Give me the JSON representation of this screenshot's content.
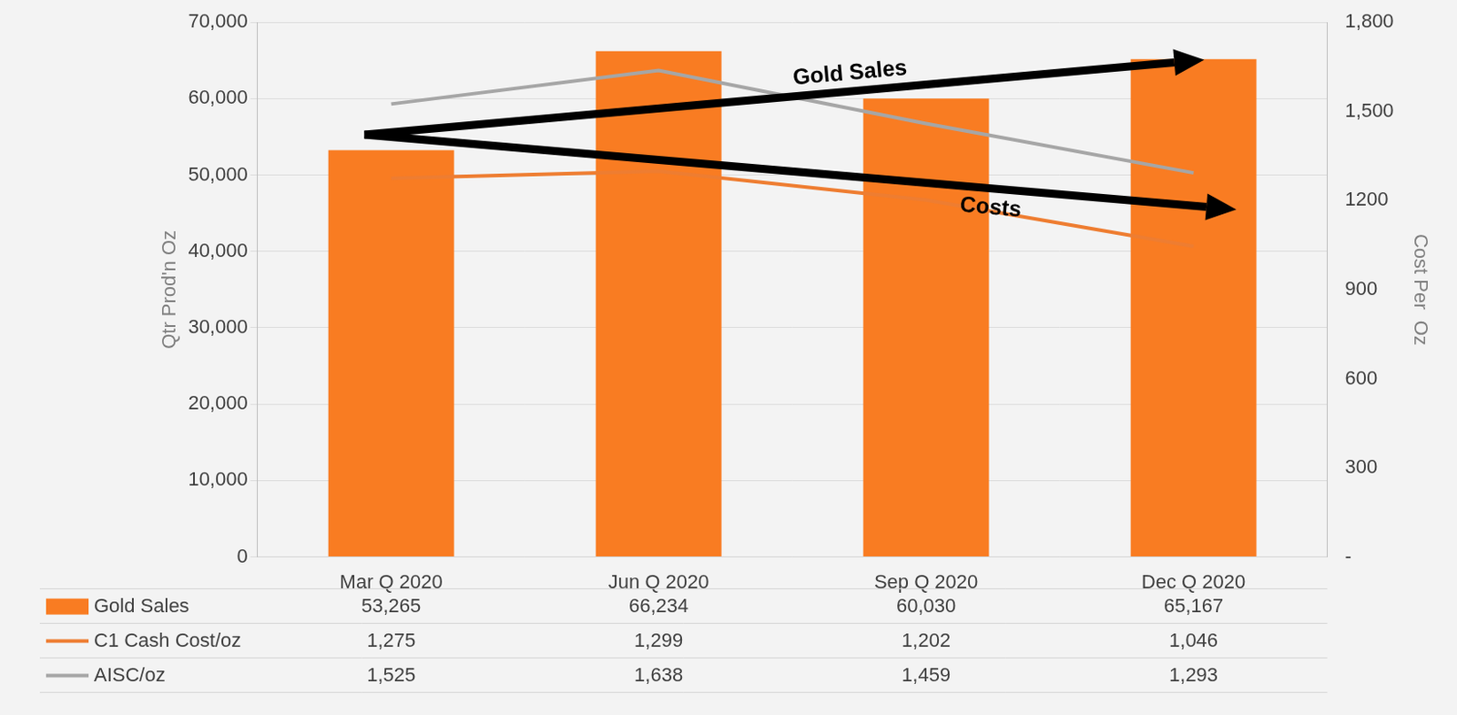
{
  "chart_data": {
    "type": "bar",
    "categories": [
      "Mar Q 2020",
      "Jun Q 2020",
      "Sep Q 2020",
      "Dec Q 2020"
    ],
    "series": [
      {
        "name": "Gold Sales",
        "type": "bar",
        "color": "#f97c22",
        "values": [
          53265,
          66234,
          60030,
          65167
        ],
        "value_labels": [
          "53,265",
          "66,234",
          "60,030",
          "65,167"
        ]
      },
      {
        "name": "C1 Cash Cost/oz",
        "type": "line",
        "color": "#ee7d31",
        "axis": "y2",
        "values": [
          1275,
          1299,
          1202,
          1046
        ],
        "value_labels": [
          "1,275",
          "1,299",
          "1,202",
          "1,046"
        ]
      },
      {
        "name": "AISC/oz",
        "type": "line",
        "color": "#a6a6a6",
        "axis": "y2",
        "values": [
          1525,
          1638,
          1459,
          1293
        ],
        "value_labels": [
          "1,525",
          "1,638",
          "1,459",
          "1,293"
        ]
      }
    ],
    "y_label": "Qtr Prod'n Oz",
    "y2_label": "Cost Per  Oz",
    "ylim": [
      0,
      70000
    ],
    "yticks": [
      0,
      {
        "value": 10000,
        "label": "10,000"
      },
      {
        "value": 20000,
        "label": "20,000"
      },
      {
        "value": 30000,
        "label": "30,000"
      },
      {
        "value": 40000,
        "label": "40,000"
      },
      {
        "value": 50000,
        "label": "50,000"
      },
      {
        "value": 60000,
        "label": "60,000"
      },
      {
        "value": 70000,
        "label": "70,000"
      }
    ],
    "y2lim": [
      0,
      1800
    ],
    "y2ticks": [
      {
        "value": 0,
        "label": "-"
      },
      300,
      600,
      900,
      1200,
      {
        "value": 1500,
        "label": "1,500"
      },
      {
        "value": 1800,
        "label": "1,800"
      }
    ],
    "grid": true,
    "legend": "bottom",
    "annotations": [
      "Gold Sales",
      "Costs"
    ]
  }
}
